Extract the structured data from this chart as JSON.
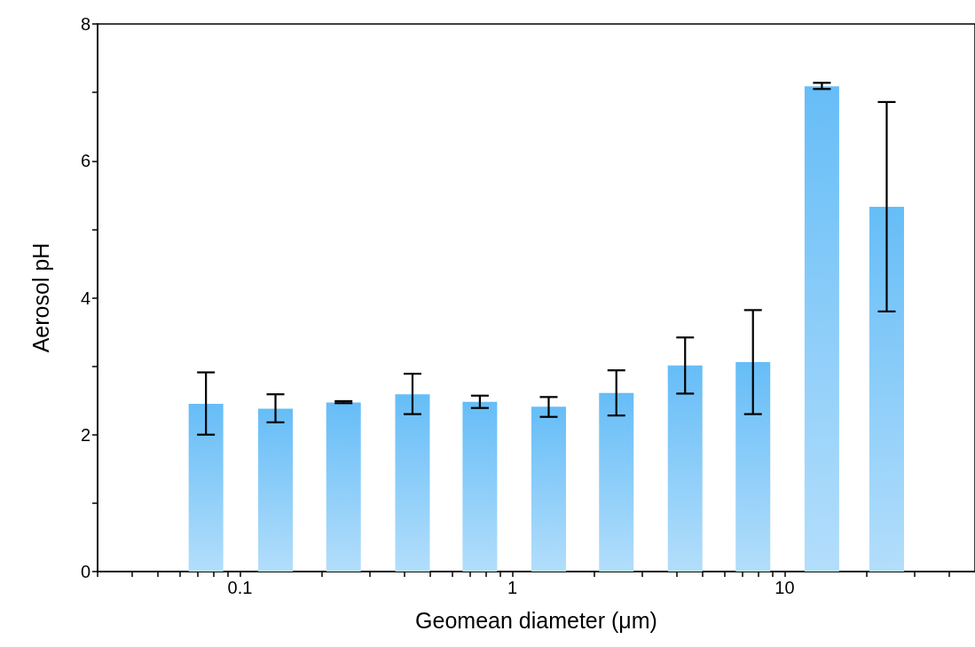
{
  "chart_data": {
    "type": "bar",
    "xlabel": "Geomean diameter (μm)",
    "ylabel": "Aerosol pH",
    "x": [
      0.075,
      0.135,
      0.24,
      0.43,
      0.76,
      1.36,
      2.41,
      4.31,
      7.65,
      13.7,
      23.7
    ],
    "values": [
      2.45,
      2.38,
      2.47,
      2.59,
      2.48,
      2.41,
      2.61,
      3.01,
      3.06,
      7.09,
      5.33
    ],
    "errors": [
      [
        2.0,
        2.91
      ],
      [
        2.18,
        2.59
      ],
      [
        2.46,
        2.49
      ],
      [
        2.3,
        2.89
      ],
      [
        2.39,
        2.57
      ],
      [
        2.26,
        2.55
      ],
      [
        2.28,
        2.94
      ],
      [
        2.6,
        3.42
      ],
      [
        2.3,
        3.82
      ],
      [
        7.05,
        7.14
      ],
      [
        3.8,
        6.86
      ]
    ],
    "color": "#66bdf7",
    "log": "x",
    "xlim": [
      0.03,
      50
    ],
    "xticks": [
      {
        "value": 0.03,
        "label": null
      },
      {
        "value": 0.04,
        "label": null
      },
      {
        "value": 0.05,
        "label": null
      },
      {
        "value": 0.06,
        "label": null
      },
      {
        "value": 0.07,
        "label": null
      },
      {
        "value": 0.08,
        "label": null
      },
      {
        "value": 0.09,
        "label": null
      },
      0.1,
      {
        "value": 0.2,
        "label": null
      },
      {
        "value": 0.3,
        "label": null
      },
      {
        "value": 0.4,
        "label": null
      },
      {
        "value": 0.5,
        "label": null
      },
      {
        "value": 0.6,
        "label": null
      },
      {
        "value": 0.7,
        "label": null
      },
      {
        "value": 0.8,
        "label": null
      },
      {
        "value": 0.9,
        "label": null
      },
      1,
      {
        "value": 2,
        "label": null
      },
      {
        "value": 3,
        "label": null
      },
      {
        "value": 4,
        "label": null
      },
      {
        "value": 5,
        "label": null
      },
      {
        "value": 6,
        "label": null
      },
      {
        "value": 7,
        "label": null
      },
      {
        "value": 8,
        "label": null
      },
      {
        "value": 9,
        "label": null
      },
      10,
      {
        "value": 20,
        "label": null
      },
      {
        "value": 30,
        "label": null
      },
      {
        "value": 40,
        "label": null
      }
    ],
    "ylim": [
      0,
      8
    ],
    "yticks": [
      0,
      {
        "value": 1,
        "label": null
      },
      2,
      {
        "value": 3,
        "label": null
      },
      4,
      {
        "value": 5,
        "label": null
      },
      6,
      {
        "value": 7,
        "label": null
      },
      8
    ],
    "grid": false,
    "legend": false
  }
}
